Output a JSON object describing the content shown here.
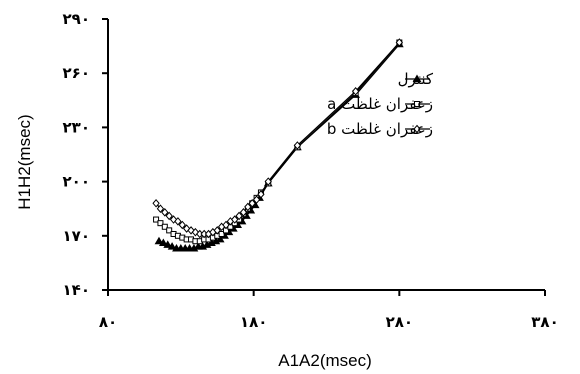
{
  "chart_data": {
    "type": "line",
    "xlabel": "A1A2(msec)",
    "ylabel": "H1H2(msec)",
    "xlim": [
      80,
      380
    ],
    "ylim": [
      140,
      290
    ],
    "xticks": [
      80,
      180,
      280,
      380
    ],
    "yticks": [
      140,
      170,
      200,
      230,
      260,
      290
    ],
    "xtick_labels": [
      "٨٠",
      "١٨٠",
      "٢٨٠",
      "٣٨٠"
    ],
    "ytick_labels": [
      "١۴٠",
      "١٧٠",
      "٢٠٠",
      "٢٣٠",
      "٢۶٠",
      "٢٩٠"
    ],
    "grid": false,
    "legend_position": "right",
    "series": [
      {
        "name": "کنترل",
        "marker": "triangle",
        "color": "#000000",
        "x": [
          115,
          118,
          121,
          124,
          127,
          130,
          133,
          136,
          139,
          142,
          145,
          148,
          151,
          154,
          157,
          160,
          163,
          166,
          169,
          172,
          175,
          178,
          181,
          184,
          190,
          210,
          250,
          280
        ],
        "y": [
          167,
          166,
          165,
          164,
          163,
          163,
          163,
          163,
          163,
          164,
          164,
          165,
          166,
          167,
          168,
          170,
          172,
          174,
          176,
          178,
          181,
          184,
          187,
          191,
          199,
          219,
          248,
          276
        ]
      },
      {
        "name": "زعفران غلظت a",
        "marker": "square",
        "color": "#000000",
        "x": [
          113,
          116,
          119,
          122,
          125,
          128,
          131,
          134,
          137,
          140,
          143,
          146,
          149,
          152,
          155,
          158,
          161,
          164,
          167,
          170,
          173,
          176,
          179,
          182,
          185,
          190,
          210,
          250,
          280
        ],
        "y": [
          179,
          177,
          175,
          173,
          171,
          170,
          169,
          168,
          168,
          167,
          167,
          168,
          168,
          169,
          170,
          171,
          173,
          175,
          177,
          179,
          182,
          185,
          188,
          191,
          194,
          199,
          219,
          249,
          277
        ]
      },
      {
        "name": "زعفران غلظت b",
        "marker": "diamond",
        "color": "#000000",
        "x": [
          113,
          116,
          119,
          122,
          125,
          128,
          131,
          134,
          137,
          140,
          143,
          146,
          149,
          152,
          155,
          158,
          161,
          164,
          167,
          170,
          173,
          176,
          179,
          182,
          185,
          190,
          210,
          250,
          280
        ],
        "y": [
          188,
          185,
          183,
          181,
          179,
          178,
          176,
          174,
          173,
          172,
          171,
          171,
          171,
          172,
          173,
          175,
          176,
          178,
          179,
          181,
          183,
          186,
          188,
          190,
          193,
          200,
          220,
          250,
          277
        ]
      }
    ]
  }
}
